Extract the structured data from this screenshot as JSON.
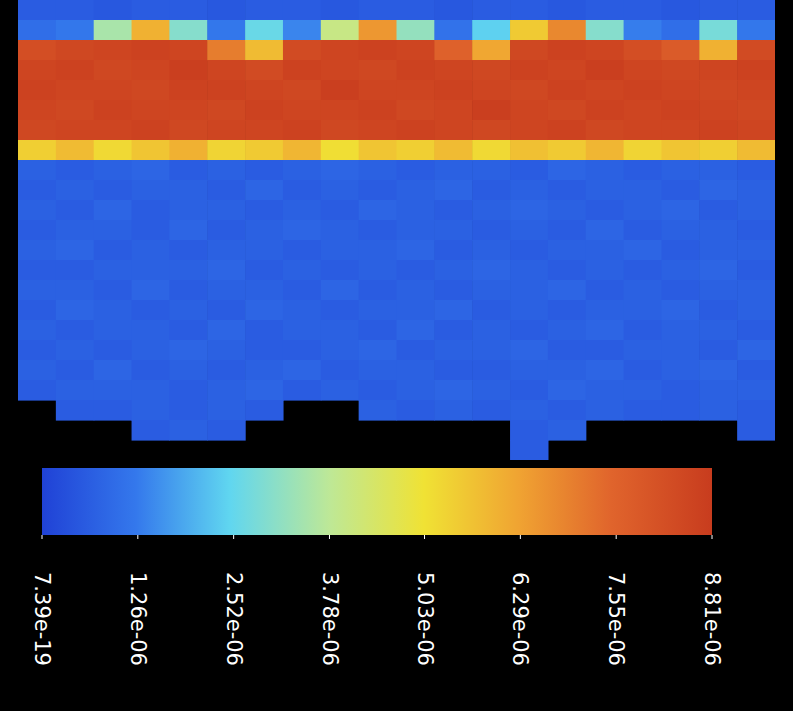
{
  "chart_data": {
    "type": "heatmap",
    "cells": [
      [
        6e-07,
        6e-07,
        5e-07,
        6e-07,
        6e-07,
        5e-07,
        6e-07,
        6e-07,
        5e-07,
        6e-07,
        6e-07,
        5e-07,
        6e-07,
        6e-07,
        5e-07,
        6e-07,
        6e-07,
        5e-07,
        6e-07,
        6e-07
      ],
      [
        1e-06,
        1.2e-06,
        3.5e-06,
        6e-06,
        3e-06,
        1.2e-06,
        2.6e-06,
        1.4e-06,
        4e-06,
        6.5e-06,
        3.2e-06,
        1.1e-06,
        2.4e-06,
        5.5e-06,
        6.8e-06,
        3e-06,
        1.3e-06,
        1e-06,
        2.8e-06,
        1.2e-06
      ],
      [
        8.2e-06,
        8.4e-06,
        8.5e-06,
        8.6e-06,
        8.5e-06,
        7e-06,
        5.8e-06,
        8.3e-06,
        8.5e-06,
        8.6e-06,
        8.5e-06,
        7.6e-06,
        6.2e-06,
        8.4e-06,
        8.6e-06,
        8.5e-06,
        8.2e-06,
        7.8e-06,
        6e-06,
        8.3e-06
      ],
      [
        8.5e-06,
        8.6e-06,
        8.4e-06,
        8.5e-06,
        8.7e-06,
        8.5e-06,
        8.3e-06,
        8.6e-06,
        8.5e-06,
        8.4e-06,
        8.6e-06,
        8.5e-06,
        8.4e-06,
        8.6e-06,
        8.5e-06,
        8.7e-06,
        8.5e-06,
        8.4e-06,
        8.5e-06,
        8.6e-06
      ],
      [
        8.6e-06,
        8.5e-06,
        8.5e-06,
        8.4e-06,
        8.6e-06,
        8.6e-06,
        8.5e-06,
        8.4e-06,
        8.7e-06,
        8.5e-06,
        8.5e-06,
        8.6e-06,
        8.5e-06,
        8.4e-06,
        8.6e-06,
        8.5e-06,
        8.6e-06,
        8.5e-06,
        8.4e-06,
        8.5e-06
      ],
      [
        8.5e-06,
        8.4e-06,
        8.6e-06,
        8.5e-06,
        8.5e-06,
        8.4e-06,
        8.6e-06,
        8.5e-06,
        8.5e-06,
        8.6e-06,
        8.4e-06,
        8.5e-06,
        8.7e-06,
        8.5e-06,
        8.4e-06,
        8.6e-06,
        8.5e-06,
        8.6e-06,
        8.5e-06,
        8.4e-06
      ],
      [
        8.4e-06,
        8.5e-06,
        8.5e-06,
        8.6e-06,
        8.4e-06,
        8.5e-06,
        8.5e-06,
        8.6e-06,
        8.4e-06,
        8.5e-06,
        8.6e-06,
        8.5e-06,
        8.4e-06,
        8.5e-06,
        8.6e-06,
        8.4e-06,
        8.5e-06,
        8.5e-06,
        8.6e-06,
        8.5e-06
      ],
      [
        5.4e-06,
        5.8e-06,
        5.2e-06,
        5.6e-06,
        6e-06,
        5.3e-06,
        5.5e-06,
        5.9e-06,
        5.1e-06,
        5.6e-06,
        5.4e-06,
        5.8e-06,
        5.2e-06,
        5.7e-06,
        5.5e-06,
        5.9e-06,
        5.3e-06,
        5.6e-06,
        5.4e-06,
        5.8e-06
      ],
      [
        7e-07,
        6e-07,
        7e-07,
        8e-07,
        6e-07,
        7e-07,
        6e-07,
        7e-07,
        8e-07,
        7e-07,
        6e-07,
        7e-07,
        7e-07,
        6e-07,
        8e-07,
        7e-07,
        6e-07,
        7e-07,
        7e-07,
        6e-07
      ],
      [
        6e-07,
        7e-07,
        6e-07,
        7e-07,
        7e-07,
        6e-07,
        8e-07,
        6e-07,
        7e-07,
        6e-07,
        7e-07,
        8e-07,
        6e-07,
        7e-07,
        6e-07,
        7e-07,
        7e-07,
        6e-07,
        8e-07,
        7e-07
      ],
      [
        7e-07,
        6e-07,
        8e-07,
        6e-07,
        7e-07,
        7e-07,
        6e-07,
        7e-07,
        6e-07,
        8e-07,
        7e-07,
        6e-07,
        7e-07,
        8e-07,
        7e-07,
        6e-07,
        7e-07,
        8e-07,
        6e-07,
        7e-07
      ],
      [
        6e-07,
        7e-07,
        7e-07,
        6e-07,
        8e-07,
        6e-07,
        7e-07,
        8e-07,
        7e-07,
        6e-07,
        7e-07,
        7e-07,
        6e-07,
        7e-07,
        6e-07,
        8e-07,
        6e-07,
        7e-07,
        7e-07,
        6e-07
      ],
      [
        7e-07,
        8e-07,
        6e-07,
        7e-07,
        6e-07,
        7e-07,
        7e-07,
        6e-07,
        7e-07,
        7e-07,
        8e-07,
        6e-07,
        7e-07,
        6e-07,
        7e-07,
        7e-07,
        8e-07,
        6e-07,
        7e-07,
        7e-07
      ],
      [
        6e-07,
        6e-07,
        7e-07,
        7e-07,
        7e-07,
        8e-07,
        6e-07,
        7e-07,
        6e-07,
        7e-07,
        6e-07,
        7e-07,
        8e-07,
        7e-07,
        6e-07,
        7e-07,
        6e-07,
        7e-07,
        8e-07,
        6e-07
      ],
      [
        7e-07,
        7e-07,
        6e-07,
        8e-07,
        6e-07,
        7e-07,
        7e-07,
        6e-07,
        8e-07,
        6e-07,
        7e-07,
        6e-07,
        7e-07,
        7e-07,
        8e-07,
        6e-07,
        7e-07,
        6e-07,
        7e-07,
        7e-07
      ],
      [
        6e-07,
        8e-07,
        7e-07,
        6e-07,
        7e-07,
        6e-07,
        8e-07,
        7e-07,
        6e-07,
        7e-07,
        7e-07,
        8e-07,
        6e-07,
        7e-07,
        6e-07,
        7e-07,
        7e-07,
        8e-07,
        6e-07,
        7e-07
      ],
      [
        7e-07,
        6e-07,
        7e-07,
        7e-07,
        6e-07,
        8e-07,
        6e-07,
        7e-07,
        7e-07,
        6e-07,
        8e-07,
        6e-07,
        7e-07,
        6e-07,
        7e-07,
        8e-07,
        6e-07,
        7e-07,
        7e-07,
        6e-07
      ],
      [
        6e-07,
        7e-07,
        6e-07,
        7e-07,
        8e-07,
        7e-07,
        6e-07,
        6e-07,
        7e-07,
        8e-07,
        6e-07,
        7e-07,
        7e-07,
        8e-07,
        6e-07,
        6e-07,
        7e-07,
        7e-07,
        6e-07,
        8e-07
      ],
      [
        7e-07,
        6e-07,
        8e-07,
        6e-07,
        7e-07,
        6e-07,
        7e-07,
        8e-07,
        6e-07,
        7e-07,
        7e-07,
        6e-07,
        6e-07,
        7e-07,
        7e-07,
        8e-07,
        6e-07,
        7e-07,
        8e-07,
        6e-07
      ],
      [
        6e-07,
        7e-07,
        7e-07,
        7e-07,
        6e-07,
        7e-07,
        8e-07,
        6e-07,
        7e-07,
        6e-07,
        7e-07,
        8e-07,
        7e-07,
        6e-07,
        8e-07,
        7e-07,
        7e-07,
        6e-07,
        7e-07,
        7e-07
      ],
      [
        null,
        6e-07,
        6e-07,
        7e-07,
        6e-07,
        7e-07,
        6e-07,
        null,
        null,
        7e-07,
        6e-07,
        7e-07,
        6e-07,
        7e-07,
        6e-07,
        7e-07,
        6e-07,
        6e-07,
        7e-07,
        6e-07
      ],
      [
        null,
        null,
        null,
        6e-07,
        7e-07,
        6e-07,
        null,
        null,
        null,
        null,
        null,
        null,
        null,
        6e-07,
        7e-07,
        null,
        null,
        null,
        null,
        6e-07
      ],
      [
        null,
        null,
        null,
        null,
        null,
        null,
        null,
        null,
        null,
        null,
        null,
        null,
        null,
        6e-07,
        null,
        null,
        null,
        null,
        null,
        null
      ]
    ],
    "colorbar": {
      "range": [
        7.39e-19,
        8.81e-06
      ],
      "ticks": [
        {
          "value": 7.39e-19,
          "label": "7.39e-19"
        },
        {
          "value": 1.26e-06,
          "label": "1.26e-06"
        },
        {
          "value": 2.52e-06,
          "label": "2.52e-06"
        },
        {
          "value": 3.78e-06,
          "label": "3.78e-06"
        },
        {
          "value": 5.03e-06,
          "label": "5.03e-06"
        },
        {
          "value": 6.29e-06,
          "label": "6.29e-06"
        },
        {
          "value": 7.55e-06,
          "label": "7.55e-06"
        },
        {
          "value": 8.81e-06,
          "label": "8.81e-06"
        }
      ]
    }
  }
}
